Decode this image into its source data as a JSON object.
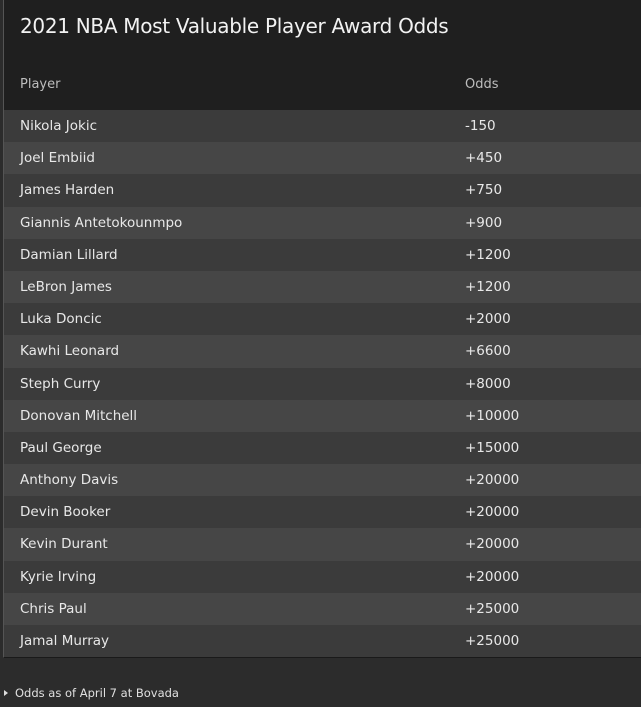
{
  "title": "2021 NBA Most Valuable Player Award Odds",
  "columns": {
    "player": "Player",
    "odds": "Odds"
  },
  "rows": [
    {
      "player": "Nikola Jokic",
      "odds": "-150"
    },
    {
      "player": "Joel Embiid",
      "odds": "+450"
    },
    {
      "player": "James Harden",
      "odds": "+750"
    },
    {
      "player": "Giannis Antetokounmpo",
      "odds": "+900"
    },
    {
      "player": "Damian Lillard",
      "odds": "+1200"
    },
    {
      "player": "LeBron James",
      "odds": "+1200"
    },
    {
      "player": "Luka Doncic",
      "odds": "+2000"
    },
    {
      "player": "Kawhi Leonard",
      "odds": "+6600"
    },
    {
      "player": "Steph Curry",
      "odds": "+8000"
    },
    {
      "player": "Donovan Mitchell",
      "odds": "+10000"
    },
    {
      "player": "Paul George",
      "odds": "+15000"
    },
    {
      "player": "Anthony Davis",
      "odds": "+20000"
    },
    {
      "player": "Devin Booker",
      "odds": "+20000"
    },
    {
      "player": "Kevin Durant",
      "odds": "+20000"
    },
    {
      "player": "Kyrie Irving",
      "odds": "+20000"
    },
    {
      "player": "Chris Paul",
      "odds": "+25000"
    },
    {
      "player": "Jamal Murray",
      "odds": "+25000"
    }
  ],
  "footnote": "Odds as of April 7 at Bovada"
}
